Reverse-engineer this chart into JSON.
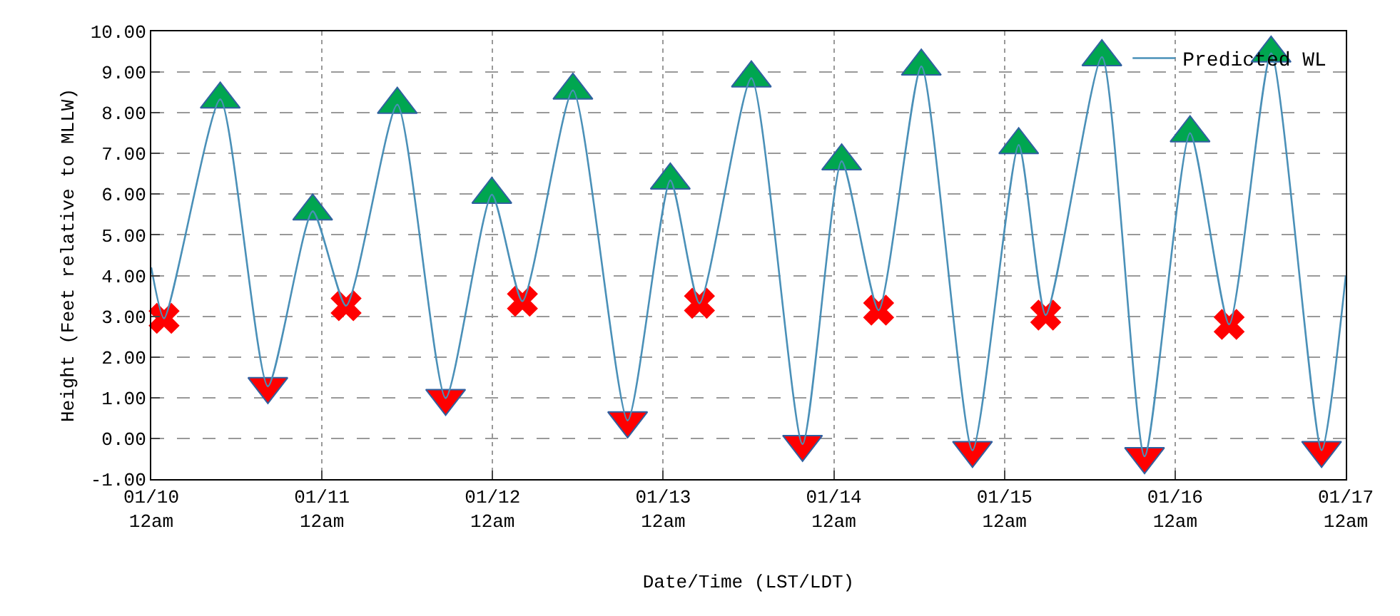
{
  "chart_data": {
    "type": "line",
    "xlabel": "Date/Time (LST/LDT)",
    "ylabel": "Height (Feet relative to MLLW)",
    "series": [
      {
        "name": "Predicted WL",
        "color": "#4a90b8",
        "marker": "none",
        "x": [
          "--01-10T00:00",
          "--01-10T01:48",
          "--01-10T09:42",
          "--01-10T16:24",
          "--01-10T22:42",
          "--01-11T03:24",
          "--01-11T10:36",
          "--01-11T17:24",
          "--01-11T23:54",
          "--01-12T04:12",
          "--01-12T11:18",
          "--01-12T19:00",
          "--01-13T01:00",
          "--01-13T05:06",
          "--01-13T12:24",
          "--01-13T19:36",
          "--01-14T01:06",
          "--01-14T06:18",
          "--01-14T12:18",
          "--01-14T19:30",
          "--01-15T02:00",
          "--01-15T05:48",
          "--01-15T13:42",
          "--01-15T19:42",
          "--01-16T02:06",
          "--01-16T07:36",
          "--01-16T13:30",
          "--01-16T20:36",
          "--01-17T00:00"
        ],
        "values": [
          4.2,
          2.95,
          8.33,
          1.28,
          5.58,
          3.26,
          8.2,
          0.99,
          5.99,
          3.37,
          8.55,
          0.44,
          6.34,
          3.32,
          8.85,
          -0.14,
          6.81,
          3.15,
          9.14,
          -0.29,
          7.21,
          3.03,
          9.37,
          -0.44,
          7.5,
          2.8,
          9.46,
          -0.29,
          4.0
        ]
      },
      {
        "type": "scatter",
        "color": "#00a650",
        "marker": "triangle",
        "x": [
          "--01-10T09:42",
          "--01-10T22:42",
          "--01-11T10:36",
          "--01-11T23:54",
          "--01-12T11:18",
          "--01-13T01:00",
          "--01-13T12:24",
          "--01-14T01:06",
          "--01-14T12:18",
          "--01-15T02:00",
          "--01-15T13:42",
          "--01-16T02:06",
          "--01-16T13:30"
        ],
        "values": [
          8.33,
          5.58,
          8.2,
          5.99,
          8.55,
          6.34,
          8.85,
          6.81,
          9.14,
          7.21,
          9.37,
          7.5,
          9.46
        ]
      },
      {
        "type": "scatter",
        "color": "#ff0000",
        "marker": "triangle-down",
        "x": [
          "--01-10T16:24",
          "--01-11T17:24",
          "--01-12T19:00",
          "--01-13T19:36",
          "--01-14T19:30",
          "--01-15T19:42",
          "--01-16T20:36"
        ],
        "values": [
          1.28,
          0.99,
          0.44,
          -0.14,
          -0.29,
          -0.44,
          -0.29
        ]
      },
      {
        "type": "scatter",
        "color": "#ff0000",
        "marker": "cross",
        "x": [
          "--01-10T01:48",
          "--01-11T03:24",
          "--01-12T04:12",
          "--01-13T05:06",
          "--01-14T06:18",
          "--01-15T05:48",
          "--01-16T07:36"
        ],
        "values": [
          2.95,
          3.26,
          3.37,
          3.32,
          3.15,
          3.03,
          2.8
        ]
      }
    ],
    "xlim": [
      "--01-10",
      "--01-17"
    ],
    "xticks": [
      {
        "value": "--01-10",
        "label": "01/10\n12am"
      },
      {
        "value": "--01-11",
        "label": "01/11\n12am"
      },
      {
        "value": "--01-12",
        "label": "01/12\n12am"
      },
      {
        "value": "--01-13",
        "label": "01/13\n12am"
      },
      {
        "value": "--01-14",
        "label": "01/14\n12am"
      },
      {
        "value": "--01-15",
        "label": "01/15\n12am"
      },
      {
        "value": "--01-16",
        "label": "01/16\n12am"
      },
      {
        "value": "--01-17",
        "label": "01/17\n12am"
      }
    ],
    "ylim": [
      -1,
      10
    ],
    "yticks": [
      {
        "value": -1,
        "label": "-1.00"
      },
      {
        "value": 0,
        "label": "0.00"
      },
      {
        "value": 1,
        "label": "1.00"
      },
      {
        "value": 2,
        "label": "2.00"
      },
      {
        "value": 3,
        "label": "3.00"
      },
      {
        "value": 4,
        "label": "4.00"
      },
      {
        "value": 5,
        "label": "5.00"
      },
      {
        "value": 6,
        "label": "6.00"
      },
      {
        "value": 7,
        "label": "7.00"
      },
      {
        "value": 8,
        "label": "8.00"
      },
      {
        "value": 9,
        "label": "9.00"
      },
      {
        "value": 10,
        "label": "10.00"
      }
    ],
    "grid": true,
    "legend": "top right"
  }
}
